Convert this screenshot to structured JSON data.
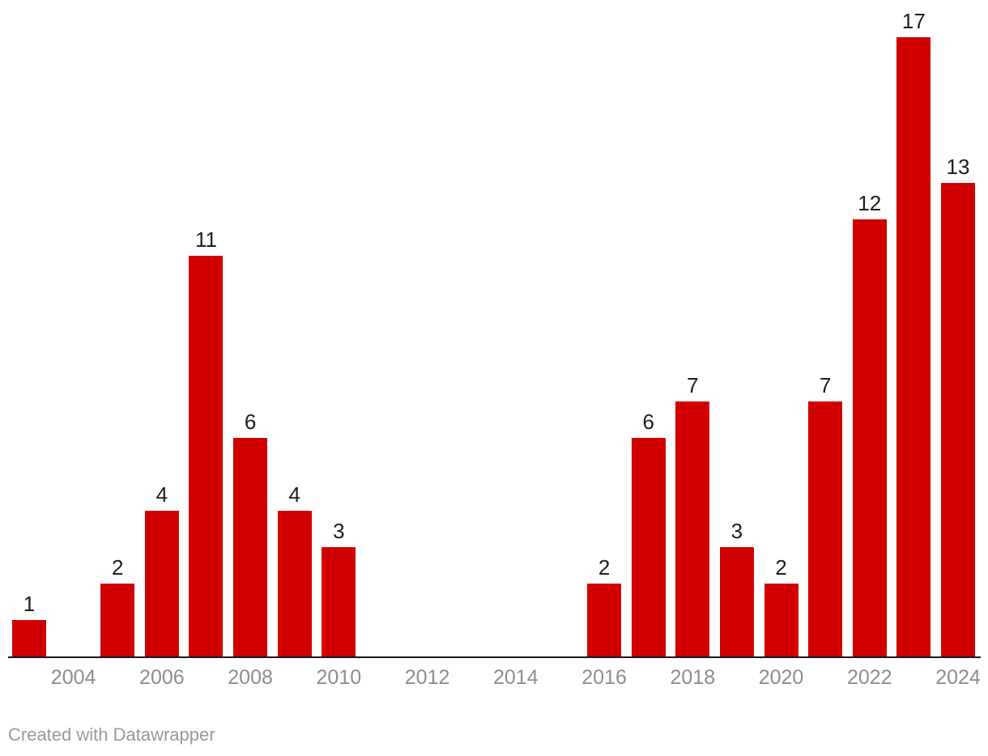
{
  "chart_data": {
    "type": "bar",
    "title": "",
    "xlabel": "",
    "ylabel": "",
    "categories": [
      2003,
      2004,
      2005,
      2006,
      2007,
      2008,
      2009,
      2010,
      2011,
      2012,
      2013,
      2014,
      2015,
      2016,
      2017,
      2018,
      2019,
      2020,
      2021,
      2022,
      2023,
      2024
    ],
    "values": [
      1,
      0,
      2,
      4,
      11,
      6,
      4,
      3,
      0,
      0,
      0,
      0,
      0,
      2,
      6,
      7,
      3,
      2,
      7,
      12,
      17,
      13
    ],
    "x_tick_labels": [
      "2004",
      "2006",
      "2008",
      "2010",
      "2012",
      "2014",
      "2016",
      "2018",
      "2020",
      "2022",
      "2024"
    ],
    "x_tick_years": [
      2004,
      2006,
      2008,
      2010,
      2012,
      2014,
      2016,
      2018,
      2020,
      2022,
      2024
    ],
    "value_labels_shown": true,
    "ylim": [
      0,
      17
    ],
    "grid": "none",
    "legend": "none",
    "colors": {
      "bar": "#d10000",
      "value_label": "#1d1d1d",
      "x_tick_label": "#8d8d8d",
      "axis_line": "#18181a",
      "background": "#ffffff"
    }
  },
  "footer": {
    "credit": "Created with Datawrapper"
  }
}
